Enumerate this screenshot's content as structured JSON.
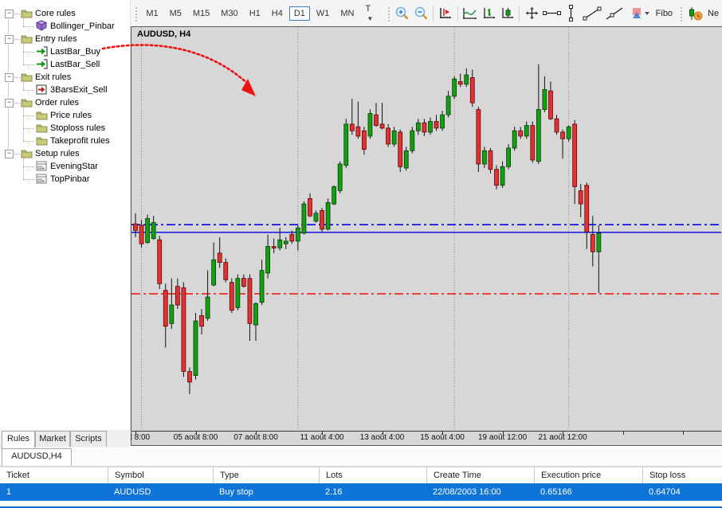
{
  "colors": {
    "accent_blue": "#0f74d8",
    "bull_green": "#12a012",
    "bear_red": "#e03232",
    "line_blue": "#0000ee",
    "line_red": "#ee1111",
    "grid_gray": "#8a8a8a",
    "chart_bg": "#d7d7d7",
    "arrow_red": "#ee1111",
    "selected_tf_border": "#3d7bbf"
  },
  "sidebar": {
    "items": [
      {
        "label": "Core rules",
        "icon": "folder",
        "level": 0,
        "expand": true
      },
      {
        "label": "Bollinger_Pinbar",
        "icon": "cube",
        "level": 1,
        "expand": false
      },
      {
        "label": "Entry rules",
        "icon": "folder",
        "level": 0,
        "expand": true
      },
      {
        "label": "LastBar_Buy",
        "icon": "arrow-in-green",
        "level": 1,
        "expand": false
      },
      {
        "label": "LastBar_Sell",
        "icon": "arrow-in-green",
        "level": 1,
        "expand": false
      },
      {
        "label": "Exit rules",
        "icon": "folder",
        "level": 0,
        "expand": true
      },
      {
        "label": "3BarsExit_Sell",
        "icon": "arrow-in-red",
        "level": 1,
        "expand": false
      },
      {
        "label": "Order rules",
        "icon": "folder",
        "level": 0,
        "expand": true
      },
      {
        "label": "Price rules",
        "icon": "folder",
        "level": 1,
        "expand": false
      },
      {
        "label": "Stoploss rules",
        "icon": "folder",
        "level": 1,
        "expand": false
      },
      {
        "label": "Takeprofit rules",
        "icon": "folder",
        "level": 1,
        "expand": false
      },
      {
        "label": "Setup rules",
        "icon": "folder",
        "level": 0,
        "expand": true
      },
      {
        "label": "EveningStar",
        "icon": "window",
        "level": 1,
        "expand": false
      },
      {
        "label": "TopPinbar",
        "icon": "window",
        "level": 1,
        "expand": false
      }
    ]
  },
  "toolbar": {
    "timeframes": [
      "M1",
      "M5",
      "M15",
      "M30",
      "H1",
      "H4",
      "D1",
      "W1",
      "MN"
    ],
    "selected_timeframe": "D1",
    "tick_dropdown_label": "T",
    "fibo_label": "Fibo",
    "neworder_label": "Ne"
  },
  "chart": {
    "symbol_label": "AUDUSD, H4"
  },
  "chart_data": {
    "type": "candlestick",
    "title": "AUDUSD, H4",
    "ylim": [
      0.6368,
      0.6671
    ],
    "grid": "vertical-dotted",
    "x_tick_labels": [
      {
        "label": "oût 8:00",
        "index": 0
      },
      {
        "label": "05 août 8:00",
        "index": 10
      },
      {
        "label": "07 août 8:00",
        "index": 20
      },
      {
        "label": "11 août 4:00",
        "index": 31
      },
      {
        "label": "13 août 4:00",
        "index": 41
      },
      {
        "label": "15 août 4:00",
        "index": 51
      },
      {
        "label": "19 août 12:00",
        "index": 61
      },
      {
        "label": "21 août 12:00",
        "index": 71
      }
    ],
    "extra_tick_indices": [
      81,
      91
    ],
    "gridline_indices": [
      1,
      27,
      53,
      72
    ],
    "hlines": [
      {
        "name": "upper-level",
        "price": 0.65224,
        "style": "dashdot",
        "color": "#0000ee"
      },
      {
        "name": "execution-price",
        "price": 0.65166,
        "style": "solid",
        "color": "#0000ee"
      },
      {
        "name": "stop-loss",
        "price": 0.64704,
        "style": "dashdot",
        "color": "#ee1111"
      }
    ],
    "candles": [
      [
        0.6523,
        0.6531,
        0.6513,
        0.6518
      ],
      [
        0.6522,
        0.6526,
        0.6505,
        0.6508
      ],
      [
        0.6509,
        0.653,
        0.6508,
        0.6527
      ],
      [
        0.6512,
        0.6529,
        0.6511,
        0.6524
      ],
      [
        0.6511,
        0.6514,
        0.6474,
        0.6478
      ],
      [
        0.6473,
        0.6478,
        0.643,
        0.6446
      ],
      [
        0.6448,
        0.6482,
        0.6444,
        0.6462
      ],
      [
        0.6476,
        0.6482,
        0.6459,
        0.6462
      ],
      [
        0.6475,
        0.6479,
        0.6408,
        0.6412
      ],
      [
        0.6412,
        0.6415,
        0.6395,
        0.6404
      ],
      [
        0.6409,
        0.6456,
        0.6406,
        0.645
      ],
      [
        0.6454,
        0.6459,
        0.644,
        0.6446
      ],
      [
        0.6452,
        0.6488,
        0.645,
        0.6468
      ],
      [
        0.6477,
        0.6509,
        0.6476,
        0.6496
      ],
      [
        0.6501,
        0.6513,
        0.649,
        0.6494
      ],
      [
        0.6494,
        0.6497,
        0.6479,
        0.6481
      ],
      [
        0.6479,
        0.6482,
        0.6456,
        0.6458
      ],
      [
        0.646,
        0.6485,
        0.6458,
        0.6482
      ],
      [
        0.6482,
        0.6485,
        0.6475,
        0.6476
      ],
      [
        0.6482,
        0.6485,
        0.6435,
        0.6448
      ],
      [
        0.6447,
        0.6464,
        0.6435,
        0.6463
      ],
      [
        0.6464,
        0.6496,
        0.6462,
        0.6488
      ],
      [
        0.6486,
        0.6515,
        0.6482,
        0.6506
      ],
      [
        0.6506,
        0.6512,
        0.6501,
        0.6505
      ],
      [
        0.6505,
        0.652,
        0.6503,
        0.6511
      ],
      [
        0.6508,
        0.6513,
        0.6504,
        0.651
      ],
      [
        0.6515,
        0.6518,
        0.6508,
        0.651
      ],
      [
        0.651,
        0.6522,
        0.6503,
        0.652
      ],
      [
        0.6516,
        0.654,
        0.6515,
        0.6538
      ],
      [
        0.6542,
        0.6546,
        0.6528,
        0.6529
      ],
      [
        0.6525,
        0.6533,
        0.6524,
        0.6531
      ],
      [
        0.6533,
        0.6535,
        0.6517,
        0.6519
      ],
      [
        0.6519,
        0.6542,
        0.6518,
        0.6539
      ],
      [
        0.6538,
        0.6552,
        0.6537,
        0.6551
      ],
      [
        0.6548,
        0.657,
        0.6546,
        0.6568
      ],
      [
        0.6567,
        0.6602,
        0.6565,
        0.6598
      ],
      [
        0.6598,
        0.6617,
        0.659,
        0.6593
      ],
      [
        0.6596,
        0.6615,
        0.6587,
        0.6589
      ],
      [
        0.6593,
        0.6596,
        0.6575,
        0.6579
      ],
      [
        0.6589,
        0.6609,
        0.6587,
        0.6606
      ],
      [
        0.6605,
        0.6614,
        0.6596,
        0.6597
      ],
      [
        0.6598,
        0.6614,
        0.6594,
        0.6595
      ],
      [
        0.6595,
        0.6598,
        0.6581,
        0.6583
      ],
      [
        0.6583,
        0.6596,
        0.6581,
        0.6593
      ],
      [
        0.6592,
        0.6594,
        0.6562,
        0.6566
      ],
      [
        0.6565,
        0.6581,
        0.6563,
        0.6578
      ],
      [
        0.6578,
        0.6596,
        0.6576,
        0.6593
      ],
      [
        0.6593,
        0.6602,
        0.659,
        0.6599
      ],
      [
        0.6599,
        0.6602,
        0.6589,
        0.6592
      ],
      [
        0.6592,
        0.6603,
        0.659,
        0.66
      ],
      [
        0.66,
        0.6605,
        0.6593,
        0.6595
      ],
      [
        0.6595,
        0.6608,
        0.6593,
        0.6605
      ],
      [
        0.6605,
        0.6623,
        0.6603,
        0.6619
      ],
      [
        0.6619,
        0.6634,
        0.6617,
        0.6632
      ],
      [
        0.663,
        0.6636,
        0.6626,
        0.6628
      ],
      [
        0.6628,
        0.664,
        0.6626,
        0.6635
      ],
      [
        0.6633,
        0.6639,
        0.6611,
        0.6614
      ],
      [
        0.6609,
        0.6611,
        0.6562,
        0.6568
      ],
      [
        0.6568,
        0.6581,
        0.6565,
        0.6578
      ],
      [
        0.6578,
        0.658,
        0.6561,
        0.6564
      ],
      [
        0.6564,
        0.6567,
        0.6549,
        0.6552
      ],
      [
        0.6552,
        0.657,
        0.655,
        0.6566
      ],
      [
        0.6566,
        0.6583,
        0.6564,
        0.658
      ],
      [
        0.658,
        0.6596,
        0.6578,
        0.6593
      ],
      [
        0.6593,
        0.6596,
        0.6587,
        0.6589
      ],
      [
        0.6589,
        0.66,
        0.6587,
        0.6597
      ],
      [
        0.6597,
        0.66,
        0.6569,
        0.6571
      ],
      [
        0.657,
        0.6643,
        0.6568,
        0.6609
      ],
      [
        0.6609,
        0.6634,
        0.6607,
        0.6624
      ],
      [
        0.6623,
        0.663,
        0.6601,
        0.6602
      ],
      [
        0.6602,
        0.6605,
        0.659,
        0.6592
      ],
      [
        0.6592,
        0.6594,
        0.6572,
        0.6587
      ],
      [
        0.6587,
        0.6597,
        0.6585,
        0.6596
      ],
      [
        0.6598,
        0.6601,
        0.6538,
        0.6551
      ],
      [
        0.6548,
        0.6553,
        0.6528,
        0.6538
      ],
      [
        0.6552,
        0.6554,
        0.6504,
        0.6517
      ],
      [
        0.6515,
        0.6529,
        0.6491,
        0.6502
      ],
      [
        0.6502,
        0.6522,
        0.6471,
        0.6516
      ]
    ],
    "annotation_arrow": {
      "from": "LastBar_Buy tree item",
      "to": "chart area",
      "color": "#ee1111",
      "style": "dotted"
    }
  },
  "tabs": {
    "items": [
      "Rules",
      "Market",
      "Scripts"
    ],
    "active": "Rules",
    "subtab": "AUDUSD,H4"
  },
  "table": {
    "columns": [
      "Ticket",
      "Symbol",
      "Type",
      "Lots",
      "Create Time",
      "Execution price",
      "Stop loss"
    ],
    "rows": [
      [
        "1",
        "AUDUSD",
        "Buy stop",
        "2.16",
        "22/08/2003 16:00",
        "0.65166",
        "0.64704"
      ]
    ]
  }
}
